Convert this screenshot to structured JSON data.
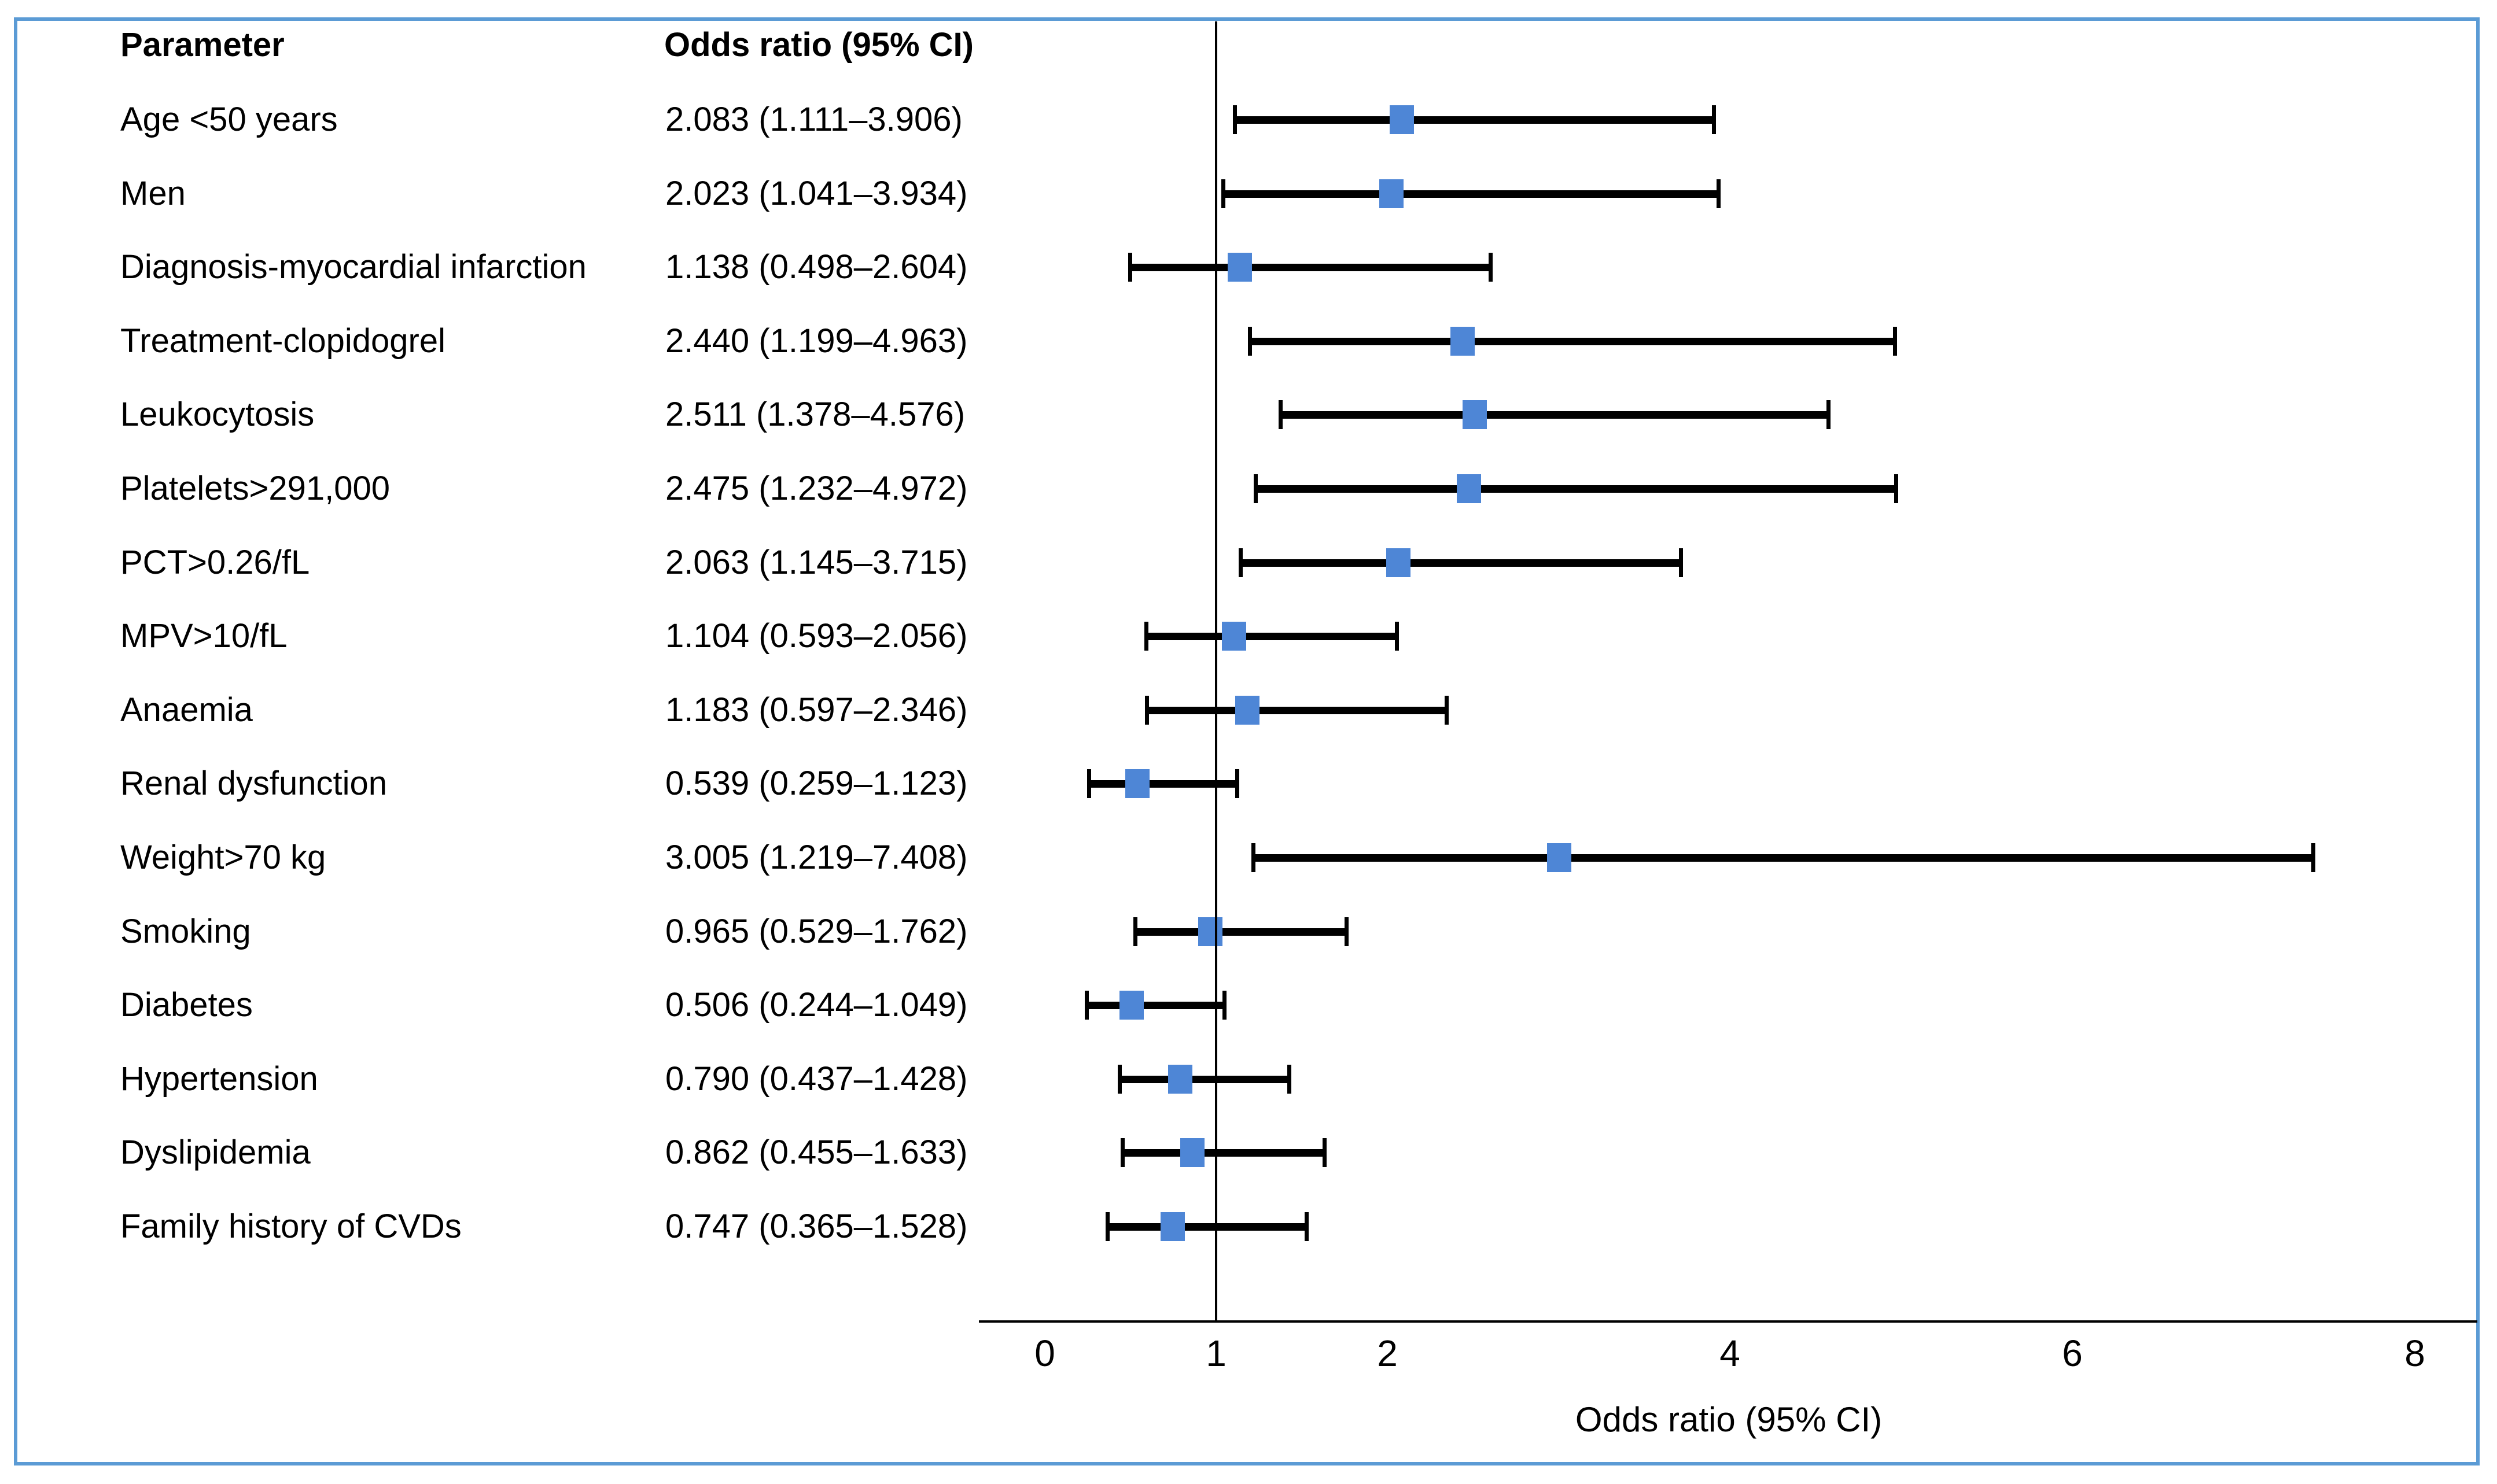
{
  "figure": {
    "border_color": "#5B9BD5",
    "marker_color": "#4E86D6",
    "line_color": "#000000",
    "background": "#ffffff"
  },
  "table": {
    "param_header": "Parameter",
    "or_header": "Odds ratio (95% CI)"
  },
  "axis": {
    "label": "Odds ratio (95% CI)",
    "ticks": [
      0,
      1,
      2,
      4,
      6,
      8
    ]
  },
  "chart_data": {
    "type": "scatter",
    "variant": "forest_plot",
    "title": "",
    "xlabel": "Odds ratio (95% CI)",
    "ylabel": "Parameter",
    "xlim": [
      -0.4,
      8.4
    ],
    "x_ticks": [
      0,
      1,
      2,
      4,
      6,
      8
    ],
    "reference_line_x": 1,
    "grid": false,
    "legend": false,
    "rows": [
      {
        "label": "Age <50 years",
        "or_text": "2.083 (1.111–3.906)",
        "or": 2.083,
        "ci_low": 1.111,
        "ci_high": 3.906
      },
      {
        "label": "Men",
        "or_text": "2.023 (1.041–3.934)",
        "or": 2.023,
        "ci_low": 1.041,
        "ci_high": 3.934
      },
      {
        "label": "Diagnosis-myocardial infarction",
        "or_text": "1.138 (0.498–2.604)",
        "or": 1.138,
        "ci_low": 0.498,
        "ci_high": 2.604
      },
      {
        "label": "Treatment-clopidogrel",
        "or_text": "2.440 (1.199–4.963)",
        "or": 2.44,
        "ci_low": 1.199,
        "ci_high": 4.963
      },
      {
        "label": "Leukocytosis",
        "or_text": "2.511 (1.378–4.576)",
        "or": 2.511,
        "ci_low": 1.378,
        "ci_high": 4.576
      },
      {
        "label": "Platelets>291,000",
        "or_text": "2.475 (1.232–4.972)",
        "or": 2.475,
        "ci_low": 1.232,
        "ci_high": 4.972
      },
      {
        "label": "PCT>0.26/fL",
        "or_text": "2.063 (1.145–3.715)",
        "or": 2.063,
        "ci_low": 1.145,
        "ci_high": 3.715
      },
      {
        "label": "MPV>10/fL",
        "or_text": "1.104 (0.593–2.056)",
        "or": 1.104,
        "ci_low": 0.593,
        "ci_high": 2.056
      },
      {
        "label": "Anaemia",
        "or_text": "1.183 (0.597–2.346)",
        "or": 1.183,
        "ci_low": 0.597,
        "ci_high": 2.346
      },
      {
        "label": "Renal dysfunction",
        "or_text": "0.539 (0.259–1.123)",
        "or": 0.539,
        "ci_low": 0.259,
        "ci_high": 1.123
      },
      {
        "label": "Weight>70 kg",
        "or_text": "3.005 (1.219–7.408)",
        "or": 3.005,
        "ci_low": 1.219,
        "ci_high": 7.408
      },
      {
        "label": "Smoking",
        "or_text": "0.965 (0.529–1.762)",
        "or": 0.965,
        "ci_low": 0.529,
        "ci_high": 1.762
      },
      {
        "label": "Diabetes",
        "or_text": "0.506 (0.244–1.049)",
        "or": 0.506,
        "ci_low": 0.244,
        "ci_high": 1.049
      },
      {
        "label": "Hypertension",
        "or_text": "0.790 (0.437–1.428)",
        "or": 0.79,
        "ci_low": 0.437,
        "ci_high": 1.428
      },
      {
        "label": "Dyslipidemia",
        "or_text": "0.862 (0.455–1.633)",
        "or": 0.862,
        "ci_low": 0.455,
        "ci_high": 1.633
      },
      {
        "label": "Family history of CVDs",
        "or_text": "0.747 (0.365–1.528)",
        "or": 0.747,
        "ci_low": 0.365,
        "ci_high": 1.528
      }
    ]
  }
}
